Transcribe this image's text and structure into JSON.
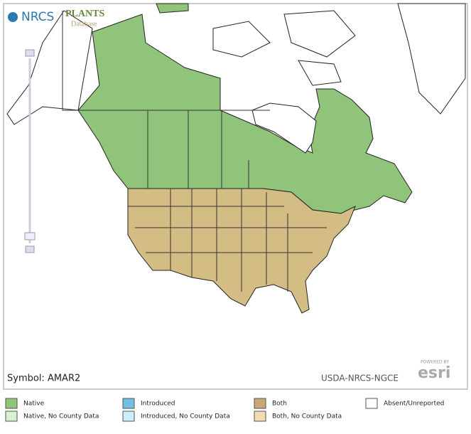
{
  "header": {
    "agency": "NRCS",
    "plants": "PLANTS",
    "database": "Database"
  },
  "map": {
    "symbol": "Symbol: AMAR2",
    "credit": "USDA-NRCS-NGCE",
    "powered": "POWERED BY",
    "esri": "esri"
  },
  "legend": [
    {
      "label": "Native",
      "color": "#8fc47a"
    },
    {
      "label": "Introduced",
      "color": "#74bde3"
    },
    {
      "label": "Both",
      "color": "#c9a878"
    },
    {
      "label": "Absent/Unreported",
      "color": "#ffffff"
    },
    {
      "label": "Native, No County Data",
      "color": "#d8f1d0"
    },
    {
      "label": "Introduced, No County Data",
      "color": "#c9eff8"
    },
    {
      "label": "Both, No County Data",
      "color": "#f0dcb0"
    }
  ]
}
